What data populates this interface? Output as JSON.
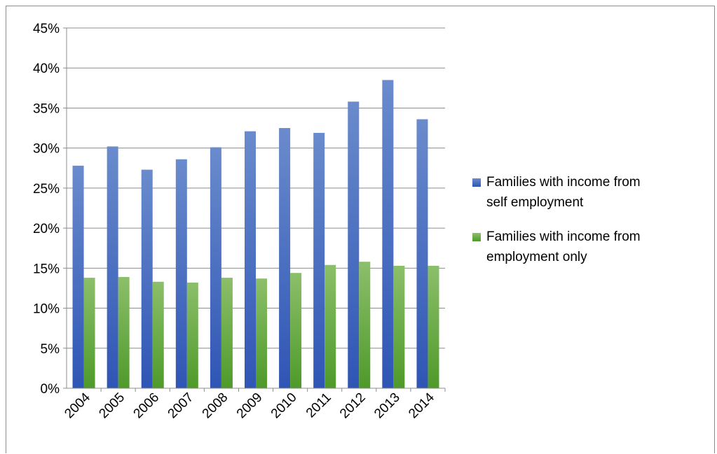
{
  "chart_data": {
    "type": "bar",
    "title": "",
    "xlabel": "",
    "ylabel": "",
    "categories": [
      "2004",
      "2005",
      "2006",
      "2007",
      "2008",
      "2009",
      "2010",
      "2011",
      "2012",
      "2013",
      "2014"
    ],
    "ylim": [
      0,
      45
    ],
    "y_ticks": [
      "0%",
      "5%",
      "10%",
      "15%",
      "20%",
      "25%",
      "30%",
      "35%",
      "40%",
      "45%"
    ],
    "y_tick_values": [
      0,
      5,
      10,
      15,
      20,
      25,
      30,
      35,
      40,
      45
    ],
    "grid": true,
    "legend_position": "right",
    "series": [
      {
        "name": "Families with income from self employment",
        "legend_lines": [
          "Families with income from",
          "self employment"
        ],
        "color": "#4472C4",
        "values": [
          27.8,
          30.2,
          27.3,
          28.6,
          30.1,
          32.1,
          32.5,
          31.9,
          35.8,
          38.5,
          33.6
        ]
      },
      {
        "name": "Families with income from employment only",
        "legend_lines": [
          "Families with income from",
          "employment only"
        ],
        "color": "#70AD47",
        "values": [
          13.8,
          13.9,
          13.3,
          13.2,
          13.8,
          13.7,
          14.4,
          15.4,
          15.8,
          15.3,
          15.3
        ]
      }
    ]
  }
}
